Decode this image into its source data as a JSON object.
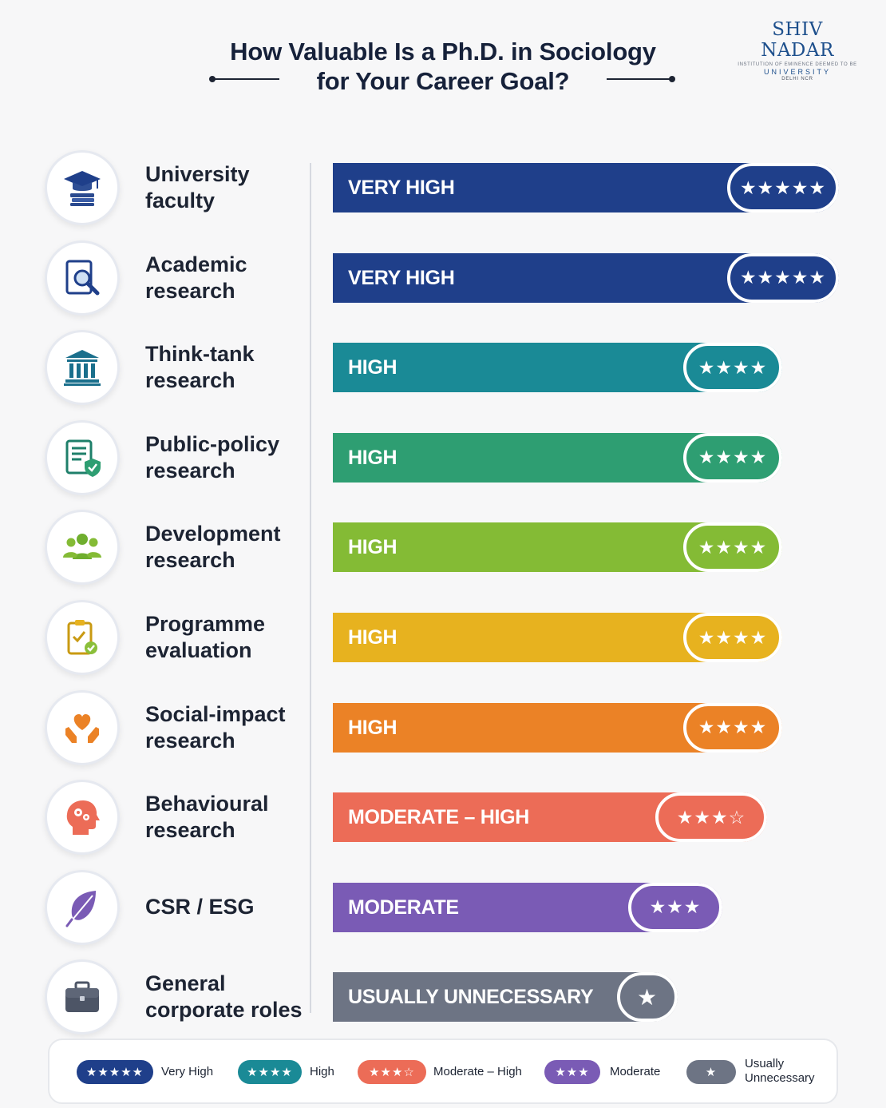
{
  "header": {
    "title_line1": "How Valuable Is a Ph.D. in Sociology",
    "title_line2": "for Your Career Goal?"
  },
  "logo": {
    "name": "SHIV NADAR",
    "subtitle": "INSTITUTION OF EMINENCE DEEMED TO BE",
    "university": "UNIVERSITY",
    "location": "DELHI NCR"
  },
  "chart_data": {
    "type": "bar",
    "orientation": "horizontal",
    "categories": [
      "University faculty",
      "Academic research",
      "Think-tank research",
      "Public-policy research",
      "Development research",
      "Programme evaluation",
      "Social-impact research",
      "Behavioural research",
      "CSR / ESG",
      "General corporate roles"
    ],
    "values": [
      5,
      5,
      4,
      4,
      4,
      4,
      4,
      3.5,
      3,
      1
    ],
    "rating_labels": [
      "VERY HIGH",
      "VERY HIGH",
      "HIGH",
      "HIGH",
      "HIGH",
      "HIGH",
      "HIGH",
      "MODERATE – HIGH",
      "MODERATE",
      "USUALLY UNNECESSARY"
    ],
    "stars": [
      "★★★★★",
      "★★★★★",
      "★★★★",
      "★★★★",
      "★★★★",
      "★★★★",
      "★★★★",
      "★★★☆",
      "★★★",
      "★"
    ],
    "bar_colors": [
      "#1f3f8a",
      "#1f3f8a",
      "#1a8a96",
      "#2e9e72",
      "#84bb35",
      "#e7b21f",
      "#eb8226",
      "#ec6c57",
      "#7a5bb5",
      "#6d7484"
    ],
    "icons": [
      "graduation-cap-icon",
      "magnifier-document-icon",
      "institution-building-icon",
      "policy-document-shield-icon",
      "people-group-icon",
      "clipboard-check-icon",
      "heart-hands-icon",
      "head-gears-icon",
      "leaf-icon",
      "briefcase-icon"
    ],
    "legend": [
      {
        "stars": "★★★★★",
        "label": "Very High",
        "color": "#1f3f8a"
      },
      {
        "stars": "★★★★",
        "label": "High",
        "color": "#1a8a96"
      },
      {
        "stars": "★★★☆",
        "label": "Moderate – High",
        "color": "#ec6c57"
      },
      {
        "stars": "★★★",
        "label": "Moderate",
        "color": "#7a5bb5"
      },
      {
        "stars": "★",
        "label": "Usually Unnecessary",
        "color": "#6d7484"
      }
    ]
  }
}
